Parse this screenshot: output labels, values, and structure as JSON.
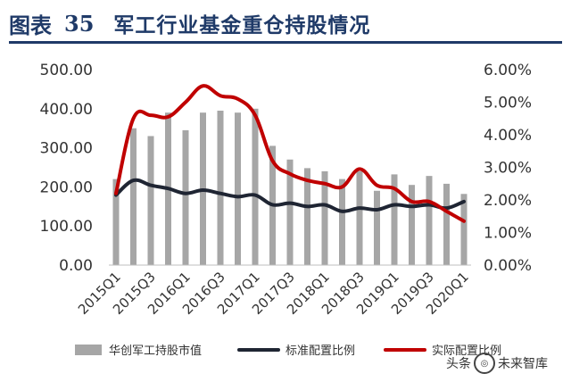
{
  "figure": {
    "prefix": "图表",
    "number": "35",
    "title": "军工行业基金重仓持股情况"
  },
  "watermark": {
    "left": "头条",
    "right": "未来智库"
  },
  "colors": {
    "title": "#1f3a68",
    "bars": "#a6a6a6",
    "benchmark": "#1f2533",
    "actual": "#c00000"
  },
  "chart_data": {
    "type": "bar",
    "x_tick_labels": [
      "2015Q1",
      "2015Q3",
      "2016Q1",
      "2016Q3",
      "2017Q1",
      "2017Q3",
      "2018Q1",
      "2018Q3",
      "2019Q1",
      "2019Q3",
      "2020Q1"
    ],
    "categories": [
      "2015Q1",
      "2015Q2",
      "2015Q3",
      "2015Q4",
      "2016Q1",
      "2016Q2",
      "2016Q3",
      "2016Q4",
      "2017Q1",
      "2017Q2",
      "2017Q3",
      "2017Q4",
      "2018Q1",
      "2018Q2",
      "2018Q3",
      "2018Q4",
      "2019Q1",
      "2019Q2",
      "2019Q3",
      "2019Q4",
      "2020Q1"
    ],
    "y_left": {
      "ticks": [
        "0.00",
        "100.00",
        "200.00",
        "300.00",
        "400.00",
        "500.00"
      ],
      "ylim": [
        0,
        500
      ]
    },
    "y_right": {
      "ticks": [
        "0.00%",
        "1.00%",
        "2.00%",
        "3.00%",
        "4.00%",
        "5.00%",
        "6.00%"
      ],
      "ylim": [
        0,
        6
      ]
    },
    "series": [
      {
        "name": "华创军工持股市值",
        "type": "bar",
        "axis": "left",
        "values": [
          220,
          350,
          330,
          390,
          345,
          390,
          395,
          390,
          400,
          305,
          270,
          248,
          240,
          220,
          240,
          190,
          232,
          205,
          228,
          208,
          182
        ]
      },
      {
        "name": "标准配置比例",
        "type": "line",
        "axis": "right",
        "values": [
          2.15,
          2.6,
          2.45,
          2.35,
          2.2,
          2.3,
          2.2,
          2.1,
          2.15,
          1.85,
          1.9,
          1.8,
          1.85,
          1.65,
          1.75,
          1.7,
          1.85,
          1.8,
          1.85,
          1.75,
          1.95
        ]
      },
      {
        "name": "实际配置比例",
        "type": "line",
        "axis": "right",
        "values": [
          2.2,
          4.5,
          4.6,
          4.55,
          5.0,
          5.5,
          5.2,
          5.1,
          4.6,
          3.2,
          2.8,
          2.6,
          2.5,
          2.4,
          2.95,
          2.45,
          2.35,
          1.95,
          1.95,
          1.65,
          1.35
        ]
      }
    ],
    "legend_position": "bottom",
    "grid": false
  }
}
